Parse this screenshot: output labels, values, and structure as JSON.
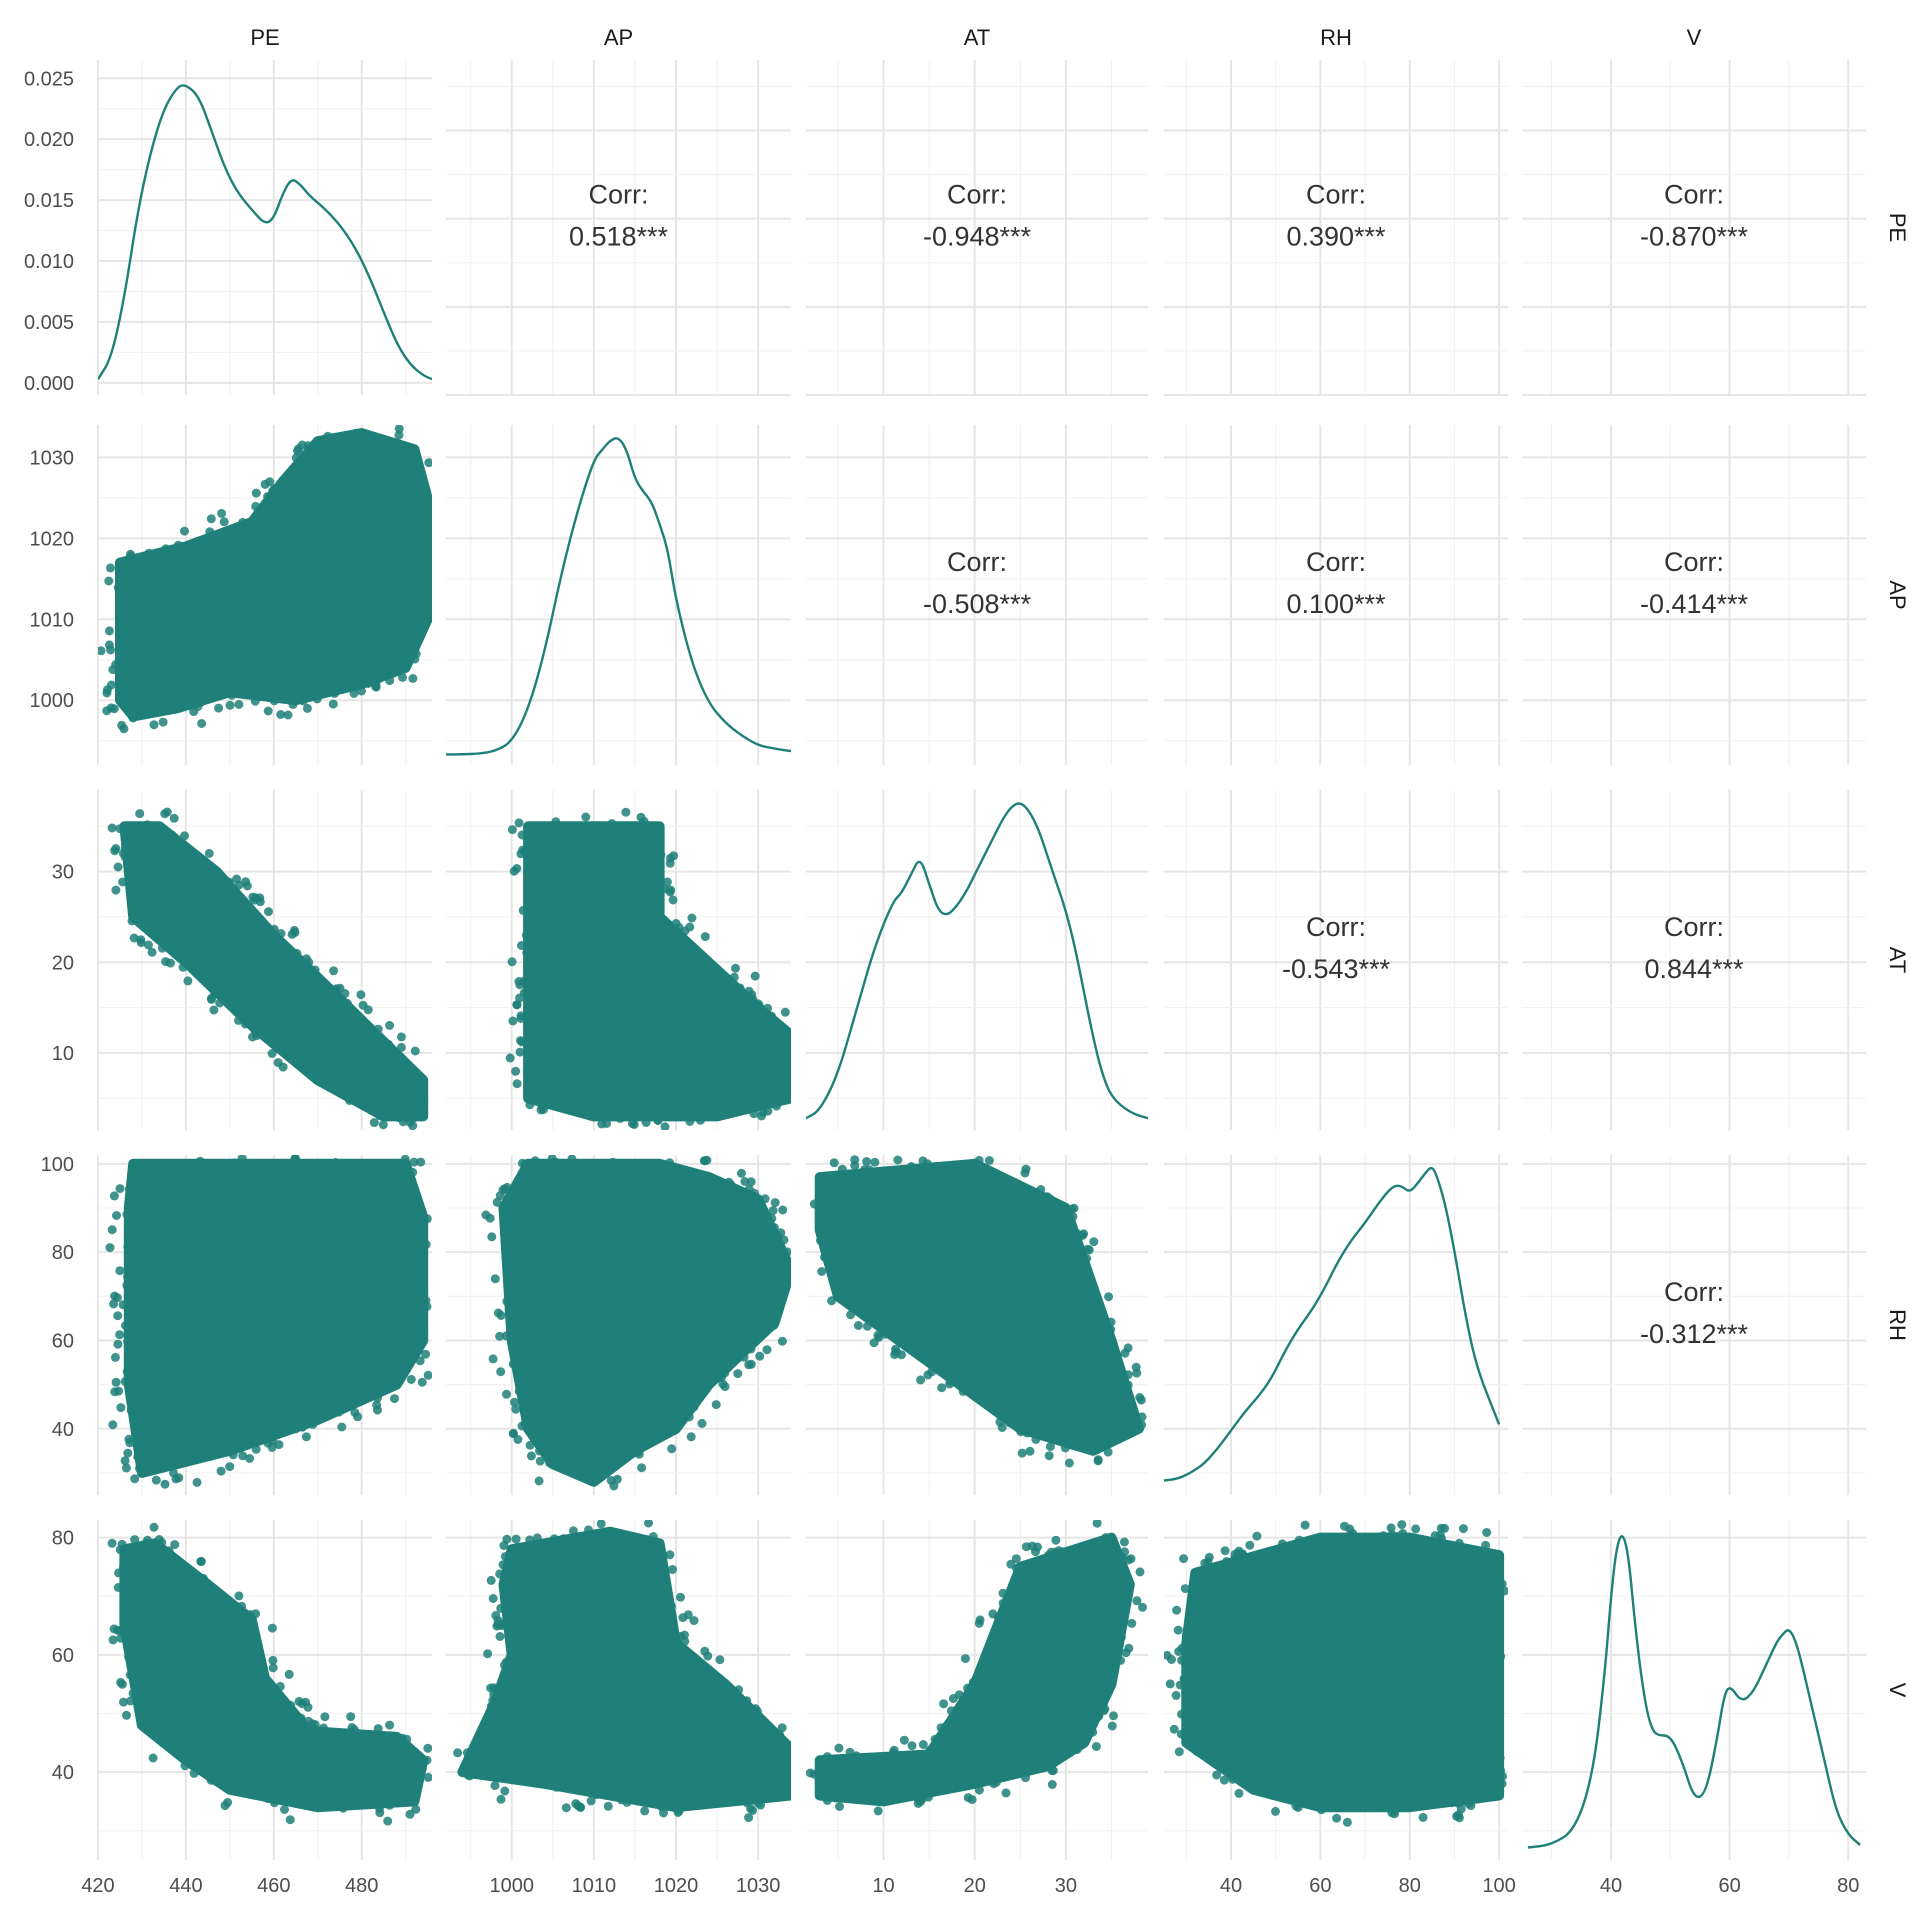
{
  "chart_data": {
    "type": "scatter",
    "variables": [
      "PE",
      "AP",
      "AT",
      "RH",
      "V"
    ],
    "series_color": "#1f8079",
    "axes": {
      "PE": {
        "range": [
          420,
          496
        ],
        "ticks": [
          420,
          440,
          460,
          480
        ],
        "tick_labels": [
          "420",
          "440",
          "460",
          "480"
        ]
      },
      "AP": {
        "range": [
          992,
          1034
        ],
        "ticks": [
          1000,
          1010,
          1020,
          1030
        ],
        "tick_labels": [
          "1000",
          "1010",
          "1020",
          "1030"
        ]
      },
      "AT": {
        "range": [
          1.5,
          39
        ],
        "ticks": [
          10,
          20,
          30
        ],
        "tick_labels": [
          "10",
          "20",
          "30"
        ]
      },
      "RH": {
        "range": [
          25,
          102
        ],
        "ticks": [
          40,
          60,
          80,
          100
        ],
        "tick_labels": [
          "40",
          "60",
          "80",
          "100"
        ]
      },
      "V": {
        "range": [
          25,
          83
        ],
        "ticks": [
          40,
          60,
          80
        ],
        "tick_labels": [
          "40",
          "60",
          "80"
        ]
      }
    },
    "density_axis": {
      "range": [
        -0.001,
        0.0265
      ],
      "ticks": [
        0,
        0.005,
        0.01,
        0.015,
        0.02,
        0.025
      ],
      "tick_labels": [
        "0.000",
        "0.005",
        "0.010",
        "0.015",
        "0.020",
        "0.025"
      ]
    },
    "densities": {
      "PE": {
        "x": [
          420,
          423,
          426,
          429,
          432,
          435,
          438,
          440,
          443,
          446,
          449,
          452,
          455,
          458,
          460,
          462,
          464,
          466,
          468,
          470,
          473,
          476,
          479,
          482,
          485,
          488,
          491,
          494,
          496
        ],
        "y": [
          0.0003,
          0.002,
          0.007,
          0.014,
          0.019,
          0.0225,
          0.0243,
          0.0245,
          0.0235,
          0.0205,
          0.0175,
          0.0155,
          0.0142,
          0.013,
          0.0135,
          0.0155,
          0.0168,
          0.0163,
          0.0154,
          0.0148,
          0.0138,
          0.0125,
          0.0108,
          0.0085,
          0.0058,
          0.0032,
          0.0015,
          0.0006,
          0.0003
        ]
      },
      "AP": {
        "x": [
          992,
          994,
          996,
          998,
          1000,
          1002,
          1004,
          1006,
          1008,
          1010,
          1011,
          1012,
          1013,
          1014,
          1015,
          1016,
          1017,
          1018,
          1019,
          1020,
          1022,
          1024,
          1026,
          1028,
          1030,
          1032,
          1034
        ],
        "y": [
          0.001,
          0.001,
          0.002,
          0.006,
          0.02,
          0.07,
          0.16,
          0.28,
          0.38,
          0.46,
          0.475,
          0.49,
          0.495,
          0.475,
          0.43,
          0.41,
          0.395,
          0.36,
          0.32,
          0.24,
          0.14,
          0.08,
          0.05,
          0.03,
          0.015,
          0.01,
          0.006
        ]
      },
      "AT": {
        "x": [
          1.5,
          3,
          5,
          7,
          9,
          11,
          12,
          13,
          14,
          15,
          16,
          17,
          18,
          19,
          20,
          21,
          22,
          23,
          24,
          25,
          26,
          27,
          28,
          29,
          30,
          31,
          32,
          33,
          34,
          35,
          37,
          39
        ],
        "y": [
          0.002,
          0.01,
          0.05,
          0.12,
          0.19,
          0.24,
          0.25,
          0.27,
          0.29,
          0.26,
          0.23,
          0.225,
          0.235,
          0.25,
          0.27,
          0.29,
          0.31,
          0.33,
          0.345,
          0.35,
          0.34,
          0.32,
          0.29,
          0.26,
          0.23,
          0.19,
          0.14,
          0.09,
          0.05,
          0.025,
          0.008,
          0.002
        ]
      },
      "RH": {
        "x": [
          25,
          28,
          31,
          34,
          37,
          40,
          43,
          46,
          49,
          52,
          55,
          58,
          61,
          64,
          67,
          70,
          73,
          76,
          78,
          80,
          82,
          84,
          85,
          86,
          88,
          90,
          92,
          94,
          96,
          98,
          100
        ],
        "y": [
          0.003,
          0.004,
          0.008,
          0.014,
          0.024,
          0.036,
          0.048,
          0.058,
          0.07,
          0.088,
          0.103,
          0.115,
          0.13,
          0.148,
          0.162,
          0.173,
          0.186,
          0.197,
          0.198,
          0.193,
          0.2,
          0.208,
          0.21,
          0.205,
          0.185,
          0.155,
          0.12,
          0.09,
          0.07,
          0.055,
          0.04
        ]
      },
      "V": {
        "x": [
          26,
          30,
          34,
          37,
          39,
          40,
          41,
          42,
          43,
          44,
          45,
          46,
          47,
          48,
          50,
          52,
          54,
          56,
          58,
          59,
          60,
          62,
          64,
          66,
          68,
          69,
          70,
          71,
          72,
          74,
          76,
          78,
          80,
          82
        ],
        "y": [
          0.001,
          0.002,
          0.008,
          0.03,
          0.07,
          0.1,
          0.12,
          0.125,
          0.115,
          0.09,
          0.07,
          0.055,
          0.047,
          0.045,
          0.045,
          0.035,
          0.02,
          0.022,
          0.045,
          0.06,
          0.065,
          0.058,
          0.062,
          0.072,
          0.082,
          0.085,
          0.087,
          0.083,
          0.075,
          0.055,
          0.035,
          0.015,
          0.006,
          0.002
        ]
      }
    },
    "correlations": [
      {
        "row": "PE",
        "col": "AP",
        "label": "Corr:",
        "value": "0.518***"
      },
      {
        "row": "PE",
        "col": "AT",
        "label": "Corr:",
        "value": "-0.948***"
      },
      {
        "row": "PE",
        "col": "RH",
        "label": "Corr:",
        "value": "0.390***"
      },
      {
        "row": "PE",
        "col": "V",
        "label": "Corr:",
        "value": "-0.870***"
      },
      {
        "row": "AP",
        "col": "AT",
        "label": "Corr:",
        "value": "-0.508***"
      },
      {
        "row": "AP",
        "col": "RH",
        "label": "Corr:",
        "value": "0.100***"
      },
      {
        "row": "AP",
        "col": "V",
        "label": "Corr:",
        "value": "-0.414***"
      },
      {
        "row": "AT",
        "col": "RH",
        "label": "Corr:",
        "value": "-0.543***"
      },
      {
        "row": "AT",
        "col": "V",
        "label": "Corr:",
        "value": "0.844***"
      },
      {
        "row": "RH",
        "col": "V",
        "label": "Corr:",
        "value": "-0.312***"
      }
    ],
    "scatter_clouds": [
      {
        "row": "AP",
        "col": "PE",
        "polygon": [
          [
            425,
            1000
          ],
          [
            425,
            1017
          ],
          [
            440,
            1019
          ],
          [
            455,
            1022
          ],
          [
            462,
            1027
          ],
          [
            470,
            1032
          ],
          [
            480,
            1033
          ],
          [
            492,
            1031
          ],
          [
            495,
            1025
          ],
          [
            495,
            1010
          ],
          [
            490,
            1004
          ],
          [
            480,
            1002
          ],
          [
            465,
            1000
          ],
          [
            450,
            1001
          ],
          [
            438,
            999
          ],
          [
            428,
            998
          ]
        ]
      },
      {
        "row": "AT",
        "col": "PE",
        "polygon": [
          [
            426,
            35
          ],
          [
            434,
            35
          ],
          [
            447,
            30
          ],
          [
            460,
            23
          ],
          [
            475,
            16
          ],
          [
            494,
            7
          ],
          [
            494,
            3
          ],
          [
            485,
            3
          ],
          [
            470,
            7
          ],
          [
            455,
            13
          ],
          [
            440,
            20
          ],
          [
            428,
            25
          ]
        ]
      },
      {
        "row": "RH",
        "col": "PE",
        "polygon": [
          [
            428,
            100
          ],
          [
            490,
            100
          ],
          [
            494,
            88
          ],
          [
            494,
            60
          ],
          [
            488,
            50
          ],
          [
            470,
            42
          ],
          [
            450,
            35
          ],
          [
            430,
            30
          ],
          [
            427,
            50
          ],
          [
            427,
            90
          ]
        ]
      },
      {
        "row": "V",
        "col": "PE",
        "polygon": [
          [
            426,
            78
          ],
          [
            433,
            79
          ],
          [
            445,
            72
          ],
          [
            455,
            66
          ],
          [
            458,
            56
          ],
          [
            468,
            47
          ],
          [
            488,
            46
          ],
          [
            494,
            42
          ],
          [
            492,
            35
          ],
          [
            470,
            34
          ],
          [
            450,
            37
          ],
          [
            440,
            42
          ],
          [
            430,
            48
          ],
          [
            426,
            65
          ]
        ]
      },
      {
        "row": "AT",
        "col": "AP",
        "polygon": [
          [
            1002,
            35
          ],
          [
            1018,
            35
          ],
          [
            1018,
            25
          ],
          [
            1024,
            20
          ],
          [
            1030,
            15
          ],
          [
            1034,
            12
          ],
          [
            1034,
            5
          ],
          [
            1025,
            3
          ],
          [
            1010,
            3
          ],
          [
            1002,
            5
          ]
        ]
      },
      {
        "row": "RH",
        "col": "AP",
        "polygon": [
          [
            1002,
            100
          ],
          [
            1018,
            100
          ],
          [
            1024,
            97
          ],
          [
            1030,
            92
          ],
          [
            1034,
            76
          ],
          [
            1032,
            64
          ],
          [
            1024,
            50
          ],
          [
            1020,
            40
          ],
          [
            1015,
            35
          ],
          [
            1010,
            28
          ],
          [
            1005,
            32
          ],
          [
            1002,
            40
          ],
          [
            1000,
            60
          ],
          [
            999,
            90
          ]
        ]
      },
      {
        "row": "V",
        "col": "AP",
        "polygon": [
          [
            1000,
            78
          ],
          [
            1012,
            81
          ],
          [
            1018,
            79
          ],
          [
            1020,
            62
          ],
          [
            1026,
            55
          ],
          [
            1034,
            44
          ],
          [
            1034,
            36
          ],
          [
            1020,
            34
          ],
          [
            1004,
            38
          ],
          [
            994,
            40
          ],
          [
            998,
            52
          ],
          [
            1000,
            60
          ],
          [
            999,
            72
          ]
        ]
      },
      {
        "row": "RH",
        "col": "AT",
        "polygon": [
          [
            3,
            97
          ],
          [
            20,
            100
          ],
          [
            30,
            90
          ],
          [
            35,
            60
          ],
          [
            38,
            40
          ],
          [
            33,
            35
          ],
          [
            25,
            40
          ],
          [
            15,
            55
          ],
          [
            5,
            70
          ],
          [
            3,
            85
          ]
        ]
      },
      {
        "row": "V",
        "col": "AT",
        "polygon": [
          [
            3,
            42
          ],
          [
            15,
            43
          ],
          [
            20,
            55
          ],
          [
            25,
            75
          ],
          [
            35,
            80
          ],
          [
            37,
            72
          ],
          [
            35,
            55
          ],
          [
            32,
            45
          ],
          [
            28,
            41
          ],
          [
            20,
            38
          ],
          [
            10,
            35
          ],
          [
            3,
            36
          ]
        ]
      },
      {
        "row": "V",
        "col": "RH",
        "polygon": [
          [
            32,
            74
          ],
          [
            60,
            80
          ],
          [
            80,
            80
          ],
          [
            100,
            77
          ],
          [
            100,
            36
          ],
          [
            80,
            34
          ],
          [
            60,
            34
          ],
          [
            45,
            37
          ],
          [
            30,
            45
          ],
          [
            30,
            62
          ]
        ]
      }
    ]
  }
}
